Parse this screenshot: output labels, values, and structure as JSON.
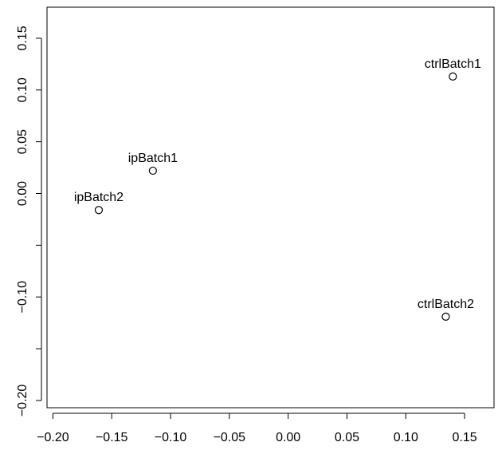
{
  "chart_data": {
    "type": "scatter",
    "title": "",
    "xlabel": "",
    "ylabel": "",
    "xlim": [
      -0.205,
      0.175
    ],
    "ylim": [
      -0.207,
      0.18
    ],
    "x_ticks": [
      {
        "value": -0.2,
        "label": "−0.20"
      },
      {
        "value": -0.15,
        "label": "−0.15"
      },
      {
        "value": -0.1,
        "label": "−0.10"
      },
      {
        "value": -0.05,
        "label": "−0.05"
      },
      {
        "value": 0.0,
        "label": "0.00"
      },
      {
        "value": 0.05,
        "label": "0.05"
      },
      {
        "value": 0.1,
        "label": "0.10"
      },
      {
        "value": 0.15,
        "label": "0.15"
      }
    ],
    "y_ticks": [
      {
        "value": -0.2,
        "label": "−0.20"
      },
      {
        "value": -0.15,
        "label": ""
      },
      {
        "value": -0.1,
        "label": "−0.10"
      },
      {
        "value": -0.05,
        "label": ""
      },
      {
        "value": 0.0,
        "label": "0.00"
      },
      {
        "value": 0.05,
        "label": "0.05"
      },
      {
        "value": 0.1,
        "label": "0.10"
      },
      {
        "value": 0.15,
        "label": "0.15"
      }
    ],
    "grid": false,
    "points": [
      {
        "label": "ctrlBatch1",
        "x": 0.14,
        "y": 0.113
      },
      {
        "label": "ipBatch1",
        "x": -0.115,
        "y": 0.022
      },
      {
        "label": "ipBatch2",
        "x": -0.161,
        "y": -0.016
      },
      {
        "label": "ctrlBatch2",
        "x": 0.134,
        "y": -0.119
      }
    ]
  }
}
